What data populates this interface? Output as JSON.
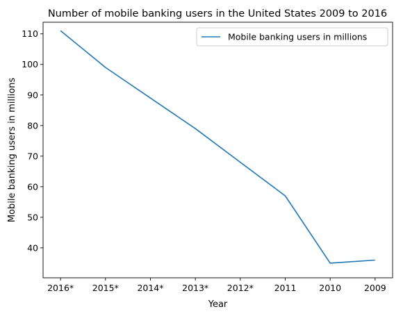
{
  "chart_data": {
    "type": "line",
    "title": "Number of mobile banking users in the United States 2009 to 2016",
    "xlabel": "Year",
    "ylabel": "Mobile banking users in millions",
    "categories": [
      "2016*",
      "2015*",
      "2014*",
      "2013*",
      "2012*",
      "2011",
      "2010",
      "2009"
    ],
    "series": [
      {
        "name": "Mobile banking users in millions",
        "values": [
          111,
          99,
          89,
          79,
          68,
          57,
          35,
          36
        ],
        "color": "#1f77b4"
      }
    ],
    "yticks": [
      40,
      50,
      60,
      70,
      80,
      90,
      100,
      110
    ],
    "ylim": [
      30.2,
      113.8
    ],
    "grid": false,
    "legend_position": "top-right"
  }
}
